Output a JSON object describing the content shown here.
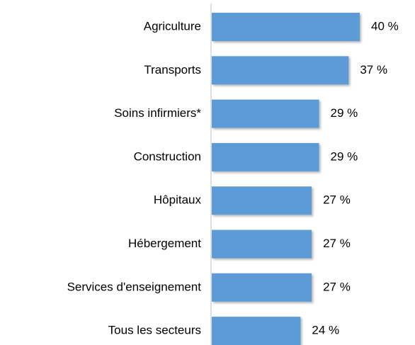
{
  "chart_data": {
    "type": "bar",
    "orientation": "horizontal",
    "categories": [
      "Agriculture",
      "Transports",
      "Soins infirmiers*",
      "Construction",
      "Hôpitaux",
      "Hébergement",
      "Services d'enseignement",
      "Tous les secteurs"
    ],
    "values": [
      40,
      37,
      29,
      29,
      27,
      27,
      27,
      24
    ],
    "value_labels": [
      "40 %",
      "37 %",
      "29 %",
      "29 %",
      "27 %",
      "27 %",
      "27 %",
      "24 %"
    ],
    "color": "#5b9bd5"
  }
}
